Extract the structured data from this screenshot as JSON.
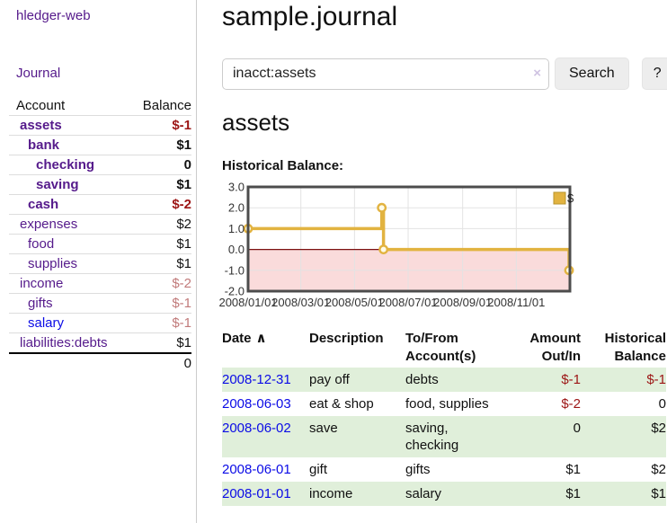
{
  "sidebar": {
    "brand": "hledger-web",
    "nav": {
      "journal": "Journal"
    },
    "accounts_table": {
      "headers": {
        "account": "Account",
        "balance": "Balance"
      },
      "rows": [
        {
          "name": "assets",
          "balance": "$-1",
          "level": 1,
          "bold": true,
          "balance_tone": "neg-strong",
          "link_tone": "visited"
        },
        {
          "name": "bank",
          "balance": "$1",
          "level": 2,
          "bold": true,
          "balance_tone": "normal",
          "link_tone": "visited"
        },
        {
          "name": "checking",
          "balance": "0",
          "level": 3,
          "bold": true,
          "balance_tone": "normal",
          "link_tone": "visited"
        },
        {
          "name": "saving",
          "balance": "$1",
          "level": 3,
          "bold": true,
          "balance_tone": "normal",
          "link_tone": "visited"
        },
        {
          "name": "cash",
          "balance": "$-2",
          "level": 2,
          "bold": true,
          "balance_tone": "neg-strong",
          "link_tone": "visited"
        },
        {
          "name": "expenses",
          "balance": "$2",
          "level": 1,
          "bold": false,
          "balance_tone": "normal",
          "link_tone": "visited"
        },
        {
          "name": "food",
          "balance": "$1",
          "level": 2,
          "bold": false,
          "balance_tone": "normal",
          "link_tone": "visited"
        },
        {
          "name": "supplies",
          "balance": "$1",
          "level": 2,
          "bold": false,
          "balance_tone": "normal",
          "link_tone": "visited"
        },
        {
          "name": "income",
          "balance": "$-2",
          "level": 1,
          "bold": false,
          "balance_tone": "neg-soft",
          "link_tone": "visited"
        },
        {
          "name": "gifts",
          "balance": "$-1",
          "level": 2,
          "bold": false,
          "balance_tone": "neg-soft",
          "link_tone": "visited"
        },
        {
          "name": "salary",
          "balance": "$-1",
          "level": 2,
          "bold": false,
          "balance_tone": "neg-soft",
          "link_tone": "unvisited"
        },
        {
          "name": "liabilities:debts",
          "balance": "$1",
          "level": 1,
          "bold": false,
          "balance_tone": "normal",
          "link_tone": "visited"
        }
      ],
      "total": "0"
    }
  },
  "header": {
    "title": "sample.journal"
  },
  "search": {
    "query": "inacct:assets",
    "clear_icon": "×",
    "search_label": "Search",
    "help_label": "?"
  },
  "account_page": {
    "heading": "assets",
    "chart_label": "Historical Balance:"
  },
  "chart_data": {
    "type": "line",
    "step": true,
    "title": "Historical Balance:",
    "series": [
      {
        "name": "$",
        "color": "#e2b340",
        "points": [
          [
            "2008-01-01",
            1.0
          ],
          [
            "2008-06-01",
            2.0
          ],
          [
            "2008-06-03",
            0.0
          ],
          [
            "2008-12-31",
            -1.0
          ]
        ]
      }
    ],
    "ylim": [
      -2,
      3
    ],
    "yticks": [
      {
        "label": "3.0",
        "value": 3
      },
      {
        "label": "2.0",
        "value": 2
      },
      {
        "label": "1.0",
        "value": 1
      },
      {
        "label": "0.0",
        "value": 0
      },
      {
        "label": "-1.0",
        "value": -1
      },
      {
        "label": "-2.0",
        "value": -2
      }
    ],
    "xticks": [
      {
        "label": "2008/01/01",
        "date": "2008-01-01"
      },
      {
        "label": "2008/03/01",
        "date": "2008-03-01"
      },
      {
        "label": "2008/05/01",
        "date": "2008-05-01"
      },
      {
        "label": "2008/07/01",
        "date": "2008-07-01"
      },
      {
        "label": "2008/09/01",
        "date": "2008-09-01"
      },
      {
        "label": "2008/11/01",
        "date": "2008-11-01"
      }
    ],
    "x_domain": [
      "2008-01-01",
      "2009-01-01"
    ],
    "grid": true,
    "legend_position": "top-right",
    "legend_label": "$",
    "negative_region_color": "#fadbdb",
    "zero_line_color": "#7c1010",
    "marker_fill": "#fffce8",
    "border_color": "#4c4c4c",
    "grid_color": "#e3e3e3",
    "tick_text_color": "#333333"
  },
  "register_table": {
    "headers": {
      "date": "Date",
      "sort_icon": "∧",
      "description": "Description",
      "accounts": "To/From Account(s)",
      "amount": "Amount Out/In",
      "balance": "Historical Balance"
    },
    "rows": [
      {
        "date": "2008-12-31",
        "description": "pay off",
        "accounts": "debts",
        "amount": "$-1",
        "amount_negative": true,
        "balance": "$-1",
        "balance_negative": true,
        "striped": true
      },
      {
        "date": "2008-06-03",
        "description": "eat & shop",
        "accounts": "food, supplies",
        "amount": "$-2",
        "amount_negative": true,
        "balance": "0",
        "balance_negative": false,
        "striped": false
      },
      {
        "date": "2008-06-02",
        "description": "save",
        "accounts": "saving,\nchecking",
        "amount": "0",
        "amount_negative": false,
        "balance": "$2",
        "balance_negative": false,
        "striped": true
      },
      {
        "date": "2008-06-01",
        "description": "gift",
        "accounts": "gifts",
        "amount": "$1",
        "amount_negative": false,
        "balance": "$2",
        "balance_negative": false,
        "striped": false
      },
      {
        "date": "2008-01-01",
        "description": "income",
        "accounts": "salary",
        "amount": "$1",
        "amount_negative": false,
        "balance": "$1",
        "balance_negative": false,
        "striped": true
      }
    ]
  },
  "colors": {
    "visited_link": "#551a8b",
    "unvisited_link": "#0b0be6",
    "negative_strong": "#9c1515",
    "negative_soft": "#c17a7a",
    "row_stripe_green": "#e0efda",
    "series_gold": "#e2b340",
    "negative_region_pink": "#fadbdb",
    "zero_line_red": "#7c1010"
  }
}
